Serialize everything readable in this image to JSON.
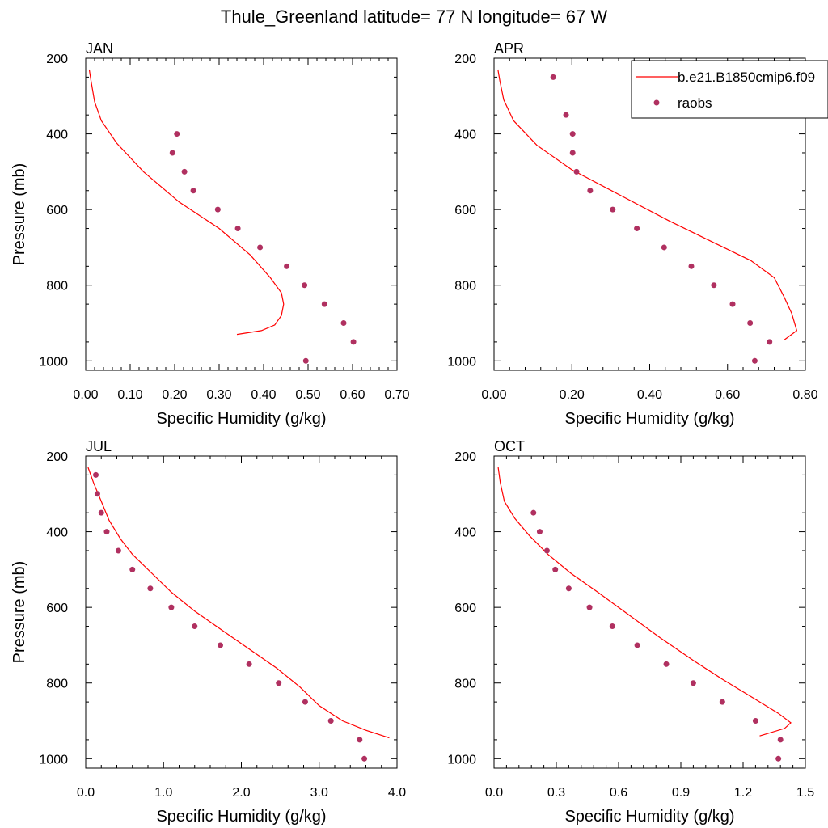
{
  "figure": {
    "title": "Thule_Greenland  latitude= 77 N longitude= 67 W"
  },
  "legend": {
    "model_label": "b.e21.B1850cmip6.f09",
    "obs_label": "raobs",
    "model_color": "#ff0000",
    "obs_color": "#b03060",
    "placement": "top-right"
  },
  "chart_data": [
    {
      "type": "line",
      "panel": "JAN",
      "title": "JAN",
      "xlabel": "Specific Humidity (g/kg)",
      "ylabel": "Pressure (mb)",
      "xlim": [
        0,
        0.7
      ],
      "ylim": [
        200,
        1025
      ],
      "y_inverted": true,
      "xticks": [
        0,
        0.1,
        0.2,
        0.3,
        0.4,
        0.5,
        0.6,
        0.7
      ],
      "xtick_labels": [
        "0.00",
        "0.10",
        "0.20",
        "0.30",
        "0.40",
        "0.50",
        "0.60",
        "0.70"
      ],
      "yticks": [
        200,
        400,
        600,
        800,
        1000
      ],
      "ytick_labels": [
        "200",
        "400",
        "600",
        "800",
        "1000"
      ],
      "series": [
        {
          "name": "b.e21.B1850cmip6.f09",
          "kind": "line",
          "x": [
            0.008,
            0.012,
            0.02,
            0.035,
            0.07,
            0.13,
            0.21,
            0.3,
            0.37,
            0.415,
            0.44,
            0.445,
            0.44,
            0.425,
            0.395,
            0.34
          ],
          "y": [
            230,
            260,
            315,
            365,
            425,
            500,
            580,
            650,
            720,
            780,
            820,
            850,
            880,
            905,
            920,
            930
          ]
        },
        {
          "name": "raobs",
          "kind": "scatter",
          "x": [
            0.205,
            0.195,
            0.222,
            0.242,
            0.297,
            0.342,
            0.392,
            0.452,
            0.492,
            0.537,
            0.58,
            0.602,
            0.495
          ],
          "y": [
            400,
            450,
            500,
            550,
            600,
            650,
            700,
            750,
            800,
            850,
            900,
            950,
            1000
          ]
        }
      ]
    },
    {
      "type": "line",
      "panel": "APR",
      "title": "APR",
      "xlabel": "Specific Humidity (g/kg)",
      "ylabel": "",
      "xlim": [
        0,
        0.8
      ],
      "ylim": [
        200,
        1025
      ],
      "y_inverted": true,
      "xticks": [
        0,
        0.2,
        0.4,
        0.6,
        0.8
      ],
      "xtick_labels": [
        "0.00",
        "0.20",
        "0.40",
        "0.60",
        "0.80"
      ],
      "yticks": [
        200,
        400,
        600,
        800,
        1000
      ],
      "ytick_labels": [
        "200",
        "400",
        "600",
        "800",
        "1000"
      ],
      "series": [
        {
          "name": "b.e21.B1850cmip6.f09",
          "kind": "line",
          "x": [
            0.01,
            0.015,
            0.025,
            0.05,
            0.11,
            0.2,
            0.32,
            0.45,
            0.57,
            0.66,
            0.72,
            0.745,
            0.765,
            0.778,
            0.745
          ],
          "y": [
            230,
            260,
            310,
            365,
            430,
            495,
            560,
            630,
            690,
            735,
            780,
            830,
            875,
            920,
            945
          ]
        },
        {
          "name": "raobs",
          "kind": "scatter",
          "x": [
            0.152,
            0.185,
            0.202,
            0.202,
            0.212,
            0.247,
            0.305,
            0.367,
            0.437,
            0.507,
            0.565,
            0.613,
            0.658,
            0.708,
            0.67
          ],
          "y": [
            250,
            350,
            400,
            450,
            500,
            550,
            600,
            650,
            700,
            750,
            800,
            850,
            900,
            950,
            1000
          ]
        }
      ]
    },
    {
      "type": "line",
      "panel": "JUL",
      "title": "JUL",
      "xlabel": "Specific Humidity (g/kg)",
      "ylabel": "Pressure (mb)",
      "xlim": [
        0,
        4.0
      ],
      "ylim": [
        200,
        1025
      ],
      "y_inverted": true,
      "xticks": [
        0,
        1,
        2,
        3,
        4
      ],
      "xtick_labels": [
        "0.0",
        "1.0",
        "2.0",
        "3.0",
        "4.0"
      ],
      "yticks": [
        200,
        400,
        600,
        800,
        1000
      ],
      "ytick_labels": [
        "200",
        "400",
        "600",
        "800",
        "1000"
      ],
      "series": [
        {
          "name": "b.e21.B1850cmip6.f09",
          "kind": "line",
          "x": [
            0.03,
            0.1,
            0.2,
            0.3,
            0.45,
            0.6,
            0.85,
            1.1,
            1.4,
            1.75,
            2.1,
            2.45,
            2.75,
            3.0,
            3.3,
            3.6,
            3.9
          ],
          "y": [
            230,
            270,
            320,
            370,
            420,
            460,
            510,
            560,
            610,
            660,
            710,
            760,
            810,
            860,
            900,
            925,
            945
          ]
        },
        {
          "name": "raobs",
          "kind": "scatter",
          "x": [
            0.13,
            0.15,
            0.2,
            0.27,
            0.42,
            0.6,
            0.83,
            1.1,
            1.4,
            1.73,
            2.1,
            2.48,
            2.82,
            3.15,
            3.52,
            3.58
          ],
          "y": [
            250,
            300,
            350,
            400,
            450,
            500,
            550,
            600,
            650,
            700,
            750,
            800,
            850,
            900,
            950,
            1000
          ]
        }
      ]
    },
    {
      "type": "line",
      "panel": "OCT",
      "title": "OCT",
      "xlabel": "Specific Humidity (g/kg)",
      "ylabel": "",
      "xlim": [
        0,
        1.5
      ],
      "ylim": [
        200,
        1025
      ],
      "y_inverted": true,
      "xticks": [
        0,
        0.3,
        0.6,
        0.9,
        1.2,
        1.5
      ],
      "xtick_labels": [
        "0.0",
        "0.3",
        "0.6",
        "0.9",
        "1.2",
        "1.5"
      ],
      "yticks": [
        200,
        400,
        600,
        800,
        1000
      ],
      "ytick_labels": [
        "200",
        "400",
        "600",
        "800",
        "1000"
      ],
      "series": [
        {
          "name": "b.e21.B1850cmip6.f09",
          "kind": "line",
          "x": [
            0.02,
            0.03,
            0.05,
            0.1,
            0.17,
            0.26,
            0.37,
            0.5,
            0.65,
            0.8,
            0.96,
            1.1,
            1.25,
            1.37,
            1.43,
            1.4,
            1.28
          ],
          "y": [
            230,
            270,
            320,
            365,
            410,
            460,
            510,
            560,
            620,
            680,
            740,
            790,
            840,
            880,
            905,
            920,
            940
          ]
        },
        {
          "name": "raobs",
          "kind": "scatter",
          "x": [
            0.19,
            0.22,
            0.255,
            0.295,
            0.36,
            0.46,
            0.57,
            0.69,
            0.83,
            0.96,
            1.1,
            1.26,
            1.38,
            1.37
          ],
          "y": [
            350,
            400,
            450,
            500,
            550,
            600,
            650,
            700,
            750,
            800,
            850,
            900,
            950,
            1000
          ]
        }
      ]
    }
  ]
}
